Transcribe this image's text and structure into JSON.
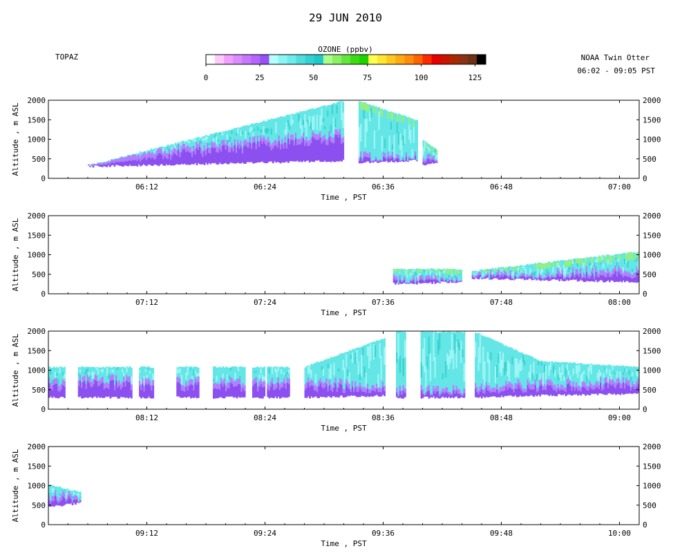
{
  "header": {
    "date_title": "29 JUN 2010",
    "site_label": "TOPAZ",
    "platform_label": "NOAA Twin Otter",
    "time_range": "06:02 - 09:05 PST"
  },
  "colorbar": {
    "title": "OZONE (ppbv)",
    "tick_labels": [
      "0",
      "25",
      "50",
      "75",
      "100",
      "125"
    ],
    "range": [
      0,
      130
    ],
    "colors": [
      "#ffffff",
      "#ffc8ff",
      "#f0a0ff",
      "#dc8cff",
      "#c878ff",
      "#b464ff",
      "#9650f5",
      "#b4ffff",
      "#8cf5f5",
      "#6eebeb",
      "#50dcdc",
      "#32d2d2",
      "#1ec8c8",
      "#aaff8c",
      "#8cf064",
      "#64e63c",
      "#3cdc14",
      "#1ed200",
      "#ffff50",
      "#ffe632",
      "#ffc81e",
      "#ffaa14",
      "#ff8c0a",
      "#ff6400",
      "#ff2800",
      "#e60000",
      "#c81400",
      "#aa2800",
      "#8c3214",
      "#6e3214",
      "#000000"
    ]
  },
  "colors": {
    "purple_dark": "#8c50f0",
    "purple_light": "#b482ff",
    "cyan_light": "#9ef5f5",
    "cyan_mid": "#64e6e6",
    "cyan_dark": "#3cd2d2",
    "green": "#96f07a"
  },
  "chart_data": [
    {
      "type": "heatmap",
      "xlabel": "Time , PST",
      "ylabel": "Altitude , m ASL",
      "xlim": [
        "06:02",
        "07:02"
      ],
      "ylim": [
        0,
        2000
      ],
      "x_ticks": [
        "06:12",
        "06:24",
        "06:36",
        "06:48",
        "07:00"
      ],
      "y_ticks": [
        "0",
        "500",
        "1000",
        "1500",
        "2000"
      ],
      "segments": [
        {
          "start": "06:06",
          "end": "06:32",
          "base_alt": [
            300,
            450
          ],
          "top_alt": [
            350,
            2000
          ],
          "boundary_alt": [
            500,
            1100
          ],
          "ozone_range_ppbv": [
            15,
            55
          ]
        },
        {
          "start": "06:33.5",
          "end": "06:39.5",
          "base_alt": [
            400,
            450
          ],
          "top_alt": [
            2000,
            1500
          ],
          "boundary_alt": [
            500,
            500
          ],
          "ozone_range_ppbv": [
            20,
            65
          ]
        },
        {
          "start": "06:40",
          "end": "06:41.5",
          "base_alt": [
            350,
            400
          ],
          "top_alt": [
            1000,
            750
          ],
          "boundary_alt": [
            450,
            450
          ],
          "ozone_range_ppbv": [
            20,
            65
          ]
        }
      ]
    },
    {
      "type": "heatmap",
      "xlabel": "Time , PST",
      "ylabel": "Altitude , m ASL",
      "xlim": [
        "07:02",
        "08:02"
      ],
      "ylim": [
        0,
        2000
      ],
      "x_ticks": [
        "07:12",
        "07:24",
        "07:36",
        "07:48",
        "08:00"
      ],
      "y_ticks": [
        "0",
        "500",
        "1000",
        "1500",
        "2000"
      ],
      "segments": [
        {
          "start": "07:37",
          "end": "07:44",
          "base_alt": [
            250,
            300
          ],
          "top_alt": [
            650,
            650
          ],
          "boundary_alt": [
            300,
            300
          ],
          "ozone_range_ppbv": [
            20,
            65
          ]
        },
        {
          "start": "07:45",
          "end": "08:02",
          "base_alt": [
            400,
            300
          ],
          "top_alt": [
            600,
            1100
          ],
          "boundary_alt": [
            400,
            550
          ],
          "ozone_range_ppbv": [
            15,
            60
          ]
        }
      ]
    },
    {
      "type": "heatmap",
      "xlabel": "Time , PST",
      "ylabel": "Altitude , m ASL",
      "xlim": [
        "08:02",
        "09:02"
      ],
      "ylim": [
        0,
        2000
      ],
      "x_ticks": [
        "08:12",
        "08:24",
        "08:36",
        "08:48",
        "09:00"
      ],
      "y_ticks": [
        "0",
        "500",
        "1000",
        "1500",
        "2000"
      ],
      "segments": [
        {
          "start": "08:02",
          "end": "08:03.7",
          "base_alt": [
            300,
            300
          ],
          "top_alt": [
            1100,
            1100
          ],
          "boundary_alt": [
            650,
            650
          ],
          "ozone_range_ppbv": [
            15,
            50
          ]
        },
        {
          "start": "08:05",
          "end": "08:10.5",
          "base_alt": [
            300,
            300
          ],
          "top_alt": [
            1100,
            1100
          ],
          "boundary_alt": [
            700,
            700
          ],
          "ozone_range_ppbv": [
            15,
            50
          ]
        },
        {
          "start": "08:11.2",
          "end": "08:12.7",
          "base_alt": [
            300,
            300
          ],
          "top_alt": [
            1100,
            1100
          ],
          "boundary_alt": [
            650,
            650
          ],
          "ozone_range_ppbv": [
            15,
            50
          ]
        },
        {
          "start": "08:15",
          "end": "08:17.3",
          "base_alt": [
            300,
            300
          ],
          "top_alt": [
            1100,
            1100
          ],
          "boundary_alt": [
            650,
            650
          ],
          "ozone_range_ppbv": [
            15,
            50
          ]
        },
        {
          "start": "08:18.7",
          "end": "08:22",
          "base_alt": [
            300,
            300
          ],
          "top_alt": [
            1100,
            1100
          ],
          "boundary_alt": [
            650,
            650
          ],
          "ozone_range_ppbv": [
            15,
            50
          ]
        },
        {
          "start": "08:22.7",
          "end": "08:24",
          "base_alt": [
            300,
            300
          ],
          "top_alt": [
            1100,
            1100
          ],
          "boundary_alt": [
            650,
            650
          ],
          "ozone_range_ppbv": [
            15,
            50
          ]
        },
        {
          "start": "08:24.2",
          "end": "08:26.5",
          "base_alt": [
            300,
            300
          ],
          "top_alt": [
            1100,
            1100
          ],
          "boundary_alt": [
            650,
            650
          ],
          "ozone_range_ppbv": [
            15,
            50
          ]
        },
        {
          "start": "08:28",
          "end": "08:36.2",
          "base_alt": [
            300,
            350
          ],
          "top_alt": [
            1100,
            1850
          ],
          "boundary_alt": [
            650,
            550
          ],
          "ozone_range_ppbv": [
            15,
            50
          ]
        },
        {
          "start": "08:37.3",
          "end": "08:38.3",
          "base_alt": [
            300,
            300
          ],
          "top_alt": [
            2000,
            2000
          ],
          "boundary_alt": [
            450,
            450
          ],
          "ozone_range_ppbv": [
            15,
            50
          ]
        },
        {
          "start": "08:39.8",
          "end": "08:44.3",
          "base_alt": [
            300,
            300
          ],
          "top_alt": [
            2000,
            2000
          ],
          "boundary_alt": [
            450,
            450
          ],
          "ozone_range_ppbv": [
            15,
            50
          ]
        },
        {
          "start": "08:45.3",
          "end": "08:52",
          "base_alt": [
            300,
            350
          ],
          "top_alt": [
            2000,
            1250
          ],
          "boundary_alt": [
            550,
            600
          ],
          "ozone_range_ppbv": [
            15,
            50
          ]
        },
        {
          "start": "08:52",
          "end": "09:02",
          "base_alt": [
            350,
            400
          ],
          "top_alt": [
            1250,
            1100
          ],
          "boundary_alt": [
            600,
            650
          ],
          "ozone_range_ppbv": [
            15,
            50
          ]
        }
      ]
    },
    {
      "type": "heatmap",
      "xlabel": "Time , PST",
      "ylabel": "Altitude , m ASL",
      "xlim": [
        "09:02",
        "10:02"
      ],
      "ylim": [
        0,
        2000
      ],
      "x_ticks": [
        "09:12",
        "09:24",
        "09:36",
        "09:48",
        "10:00"
      ],
      "y_ticks": [
        "0",
        "500",
        "1000",
        "1500",
        "2000"
      ],
      "segments": [
        {
          "start": "09:02",
          "end": "09:05.3",
          "base_alt": [
            450,
            550
          ],
          "top_alt": [
            1050,
            850
          ],
          "boundary_alt": [
            700,
            650
          ],
          "ozone_range_ppbv": [
            15,
            50
          ]
        }
      ]
    }
  ]
}
